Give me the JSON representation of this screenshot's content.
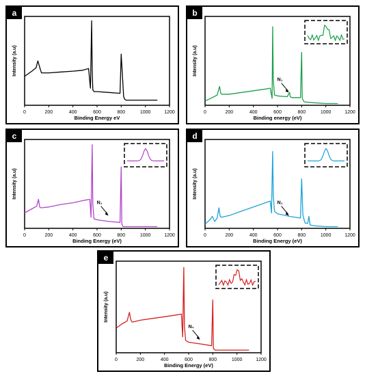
{
  "chart_data": [
    {
      "type": "line",
      "panel_label": "a",
      "xlabel": "Binding Energy eV",
      "ylabel": "Intensity (a.u)",
      "xlim": [
        0,
        1200
      ],
      "xticks": [
        "0",
        "200",
        "400",
        "600",
        "800",
        "1000",
        "1200"
      ],
      "color": "#000000",
      "annotation": "",
      "inset": false,
      "series": [
        {
          "x": [
            0,
            60,
            95,
            110,
            120,
            130,
            140,
            200,
            300,
            400,
            480,
            530,
            545,
            555,
            560,
            565,
            575,
            600,
            700,
            790,
            800,
            820,
            830,
            840,
            900,
            1000,
            1100
          ],
          "y": [
            0.34,
            0.4,
            0.44,
            0.52,
            0.47,
            0.42,
            0.38,
            0.38,
            0.39,
            0.4,
            0.41,
            0.43,
            0.2,
            0.99,
            0.4,
            0.18,
            0.16,
            0.16,
            0.15,
            0.14,
            0.6,
            0.1,
            0.07,
            0.06,
            0.06,
            0.06,
            0.06
          ]
        }
      ]
    },
    {
      "type": "line",
      "panel_label": "b",
      "xlabel": "Binding energy (eV)",
      "ylabel": "Intensity (a.u)",
      "xlim": [
        0,
        1200
      ],
      "xticks": [
        "0",
        "200",
        "400",
        "600",
        "800",
        "1000",
        "1200"
      ],
      "color": "#1a9e4a",
      "annotation": "N₁",
      "inset": true,
      "series": [
        {
          "x": [
            0,
            60,
            100,
            120,
            130,
            140,
            200,
            300,
            400,
            500,
            540,
            555,
            560,
            565,
            575,
            600,
            680,
            700,
            705,
            720,
            790,
            800,
            805,
            820,
            900,
            1000,
            1100
          ],
          "y": [
            0.05,
            0.09,
            0.12,
            0.22,
            0.14,
            0.13,
            0.13,
            0.15,
            0.17,
            0.19,
            0.2,
            0.08,
            0.92,
            0.3,
            0.12,
            0.11,
            0.1,
            0.15,
            0.1,
            0.09,
            0.09,
            0.62,
            0.08,
            0.04,
            0.03,
            0.02,
            0.02
          ]
        }
      ]
    },
    {
      "type": "line",
      "panel_label": "c",
      "xlabel": "Binding Energy (eV)",
      "ylabel": "Intensity (a.u)",
      "xlim": [
        0,
        1200
      ],
      "xticks": [
        "0",
        "200",
        "400",
        "600",
        "800",
        "1000",
        "1200"
      ],
      "color": "#b046c8",
      "annotation": "N₁",
      "inset": true,
      "series": [
        {
          "x": [
            0,
            50,
            100,
            115,
            125,
            135,
            200,
            300,
            400,
            500,
            540,
            550,
            560,
            565,
            575,
            600,
            700,
            790,
            800,
            805,
            815,
            830,
            900,
            1000,
            1100
          ],
          "y": [
            0.18,
            0.22,
            0.26,
            0.34,
            0.25,
            0.24,
            0.25,
            0.28,
            0.3,
            0.33,
            0.34,
            0.13,
            0.98,
            0.28,
            0.11,
            0.1,
            0.08,
            0.07,
            0.72,
            0.05,
            0.02,
            0.02,
            0.02,
            0.02,
            0.02
          ]
        }
      ]
    },
    {
      "type": "line",
      "panel_label": "d",
      "xlabel": "Binding Energy (eV)",
      "ylabel": "Intensity (a.u)",
      "xlim": [
        0,
        1200
      ],
      "xticks": [
        "0",
        "200",
        "400",
        "600",
        "800",
        "1000",
        "1200"
      ],
      "color": "#1aa3d8",
      "annotation": "N₁",
      "inset": true,
      "series": [
        {
          "x": [
            0,
            40,
            60,
            80,
            100,
            115,
            125,
            135,
            200,
            300,
            400,
            500,
            540,
            550,
            560,
            565,
            575,
            600,
            700,
            790,
            800,
            810,
            820,
            830,
            850,
            860,
            870,
            900,
            1000,
            1100
          ],
          "y": [
            0.05,
            0.1,
            0.14,
            0.08,
            0.12,
            0.24,
            0.14,
            0.13,
            0.15,
            0.2,
            0.25,
            0.3,
            0.32,
            0.18,
            0.9,
            0.38,
            0.2,
            0.17,
            0.14,
            0.12,
            0.58,
            0.16,
            0.1,
            0.06,
            0.06,
            0.14,
            0.04,
            0.03,
            0.02,
            0.02
          ]
        }
      ]
    },
    {
      "type": "line",
      "panel_label": "e",
      "xlabel": "Binding Energy (eV)",
      "ylabel": "Intensity (a.u)",
      "xlim": [
        0,
        1200
      ],
      "xticks": [
        "0",
        "200",
        "400",
        "600",
        "800",
        "1000",
        "1200"
      ],
      "color": "#d42020",
      "annotation": "N₁",
      "inset": true,
      "series": [
        {
          "x": [
            0,
            50,
            90,
            110,
            120,
            130,
            140,
            200,
            300,
            400,
            500,
            540,
            550,
            560,
            565,
            575,
            600,
            700,
            790,
            800,
            805,
            820,
            900,
            1000,
            1100
          ],
          "y": [
            0.28,
            0.33,
            0.36,
            0.46,
            0.38,
            0.35,
            0.35,
            0.37,
            0.39,
            0.41,
            0.43,
            0.44,
            0.18,
            0.97,
            0.3,
            0.14,
            0.12,
            0.1,
            0.08,
            0.6,
            0.05,
            0.03,
            0.03,
            0.03,
            0.03
          ]
        }
      ]
    }
  ]
}
